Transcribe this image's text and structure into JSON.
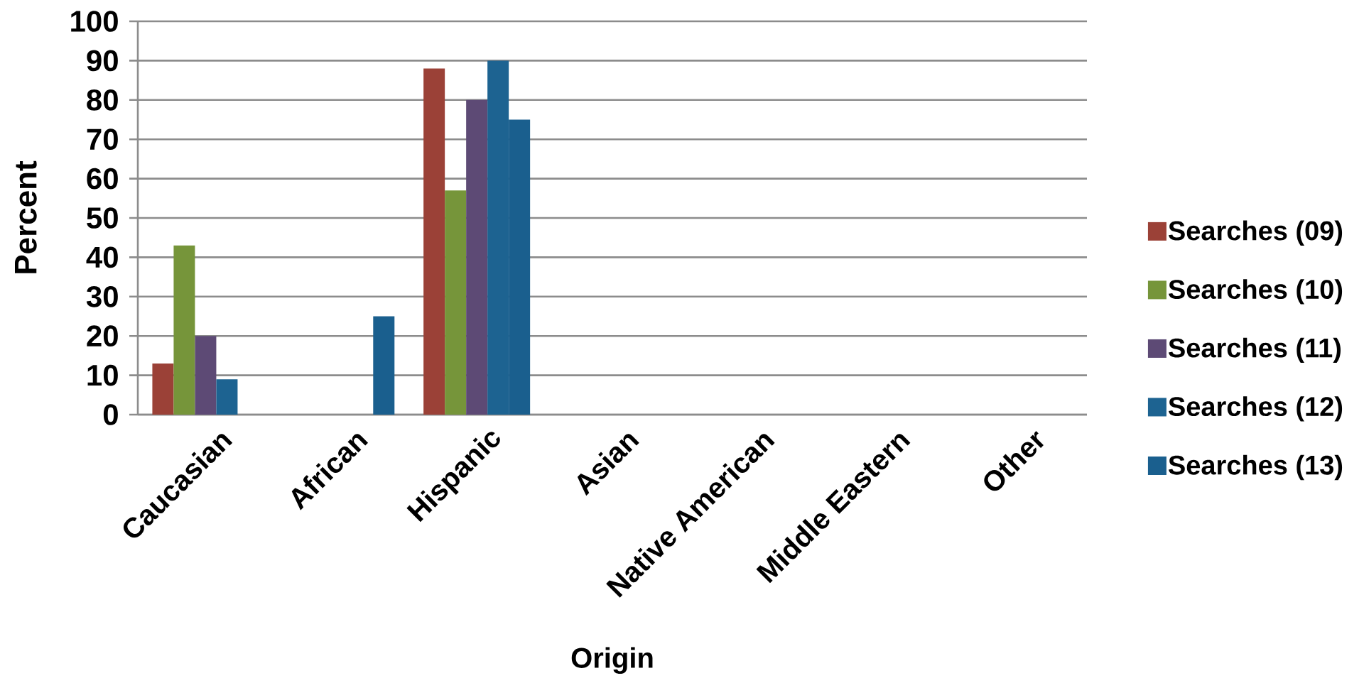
{
  "chart_data": {
    "type": "bar",
    "xlabel": "Origin",
    "ylabel": "Percent",
    "categories": [
      "Caucasian",
      "African",
      "Hispanic",
      "Asian",
      "Native American",
      "Middle Eastern",
      "Other"
    ],
    "series": [
      {
        "name": "Searches (09)",
        "color": "#9b4137",
        "values": [
          13,
          null,
          88,
          null,
          null,
          null,
          null
        ]
      },
      {
        "name": "Searches (10)",
        "color": "#76953a",
        "values": [
          43,
          null,
          57,
          null,
          null,
          null,
          null
        ]
      },
      {
        "name": "Searches (11)",
        "color": "#5d4a75",
        "values": [
          20,
          null,
          80,
          null,
          null,
          null,
          null
        ]
      },
      {
        "name": "Searches (12)",
        "color": "#1d6391",
        "values": [
          9,
          null,
          90,
          null,
          null,
          null,
          null
        ]
      },
      {
        "name": "Searches (13)",
        "color": "#1a5f8e",
        "values": [
          null,
          25,
          75,
          null,
          null,
          null,
          null
        ]
      }
    ],
    "ylim": [
      0,
      100
    ],
    "yticks": [
      0,
      10,
      20,
      30,
      40,
      50,
      60,
      70,
      80,
      90,
      100
    ],
    "grid": "y",
    "legend": "right"
  }
}
